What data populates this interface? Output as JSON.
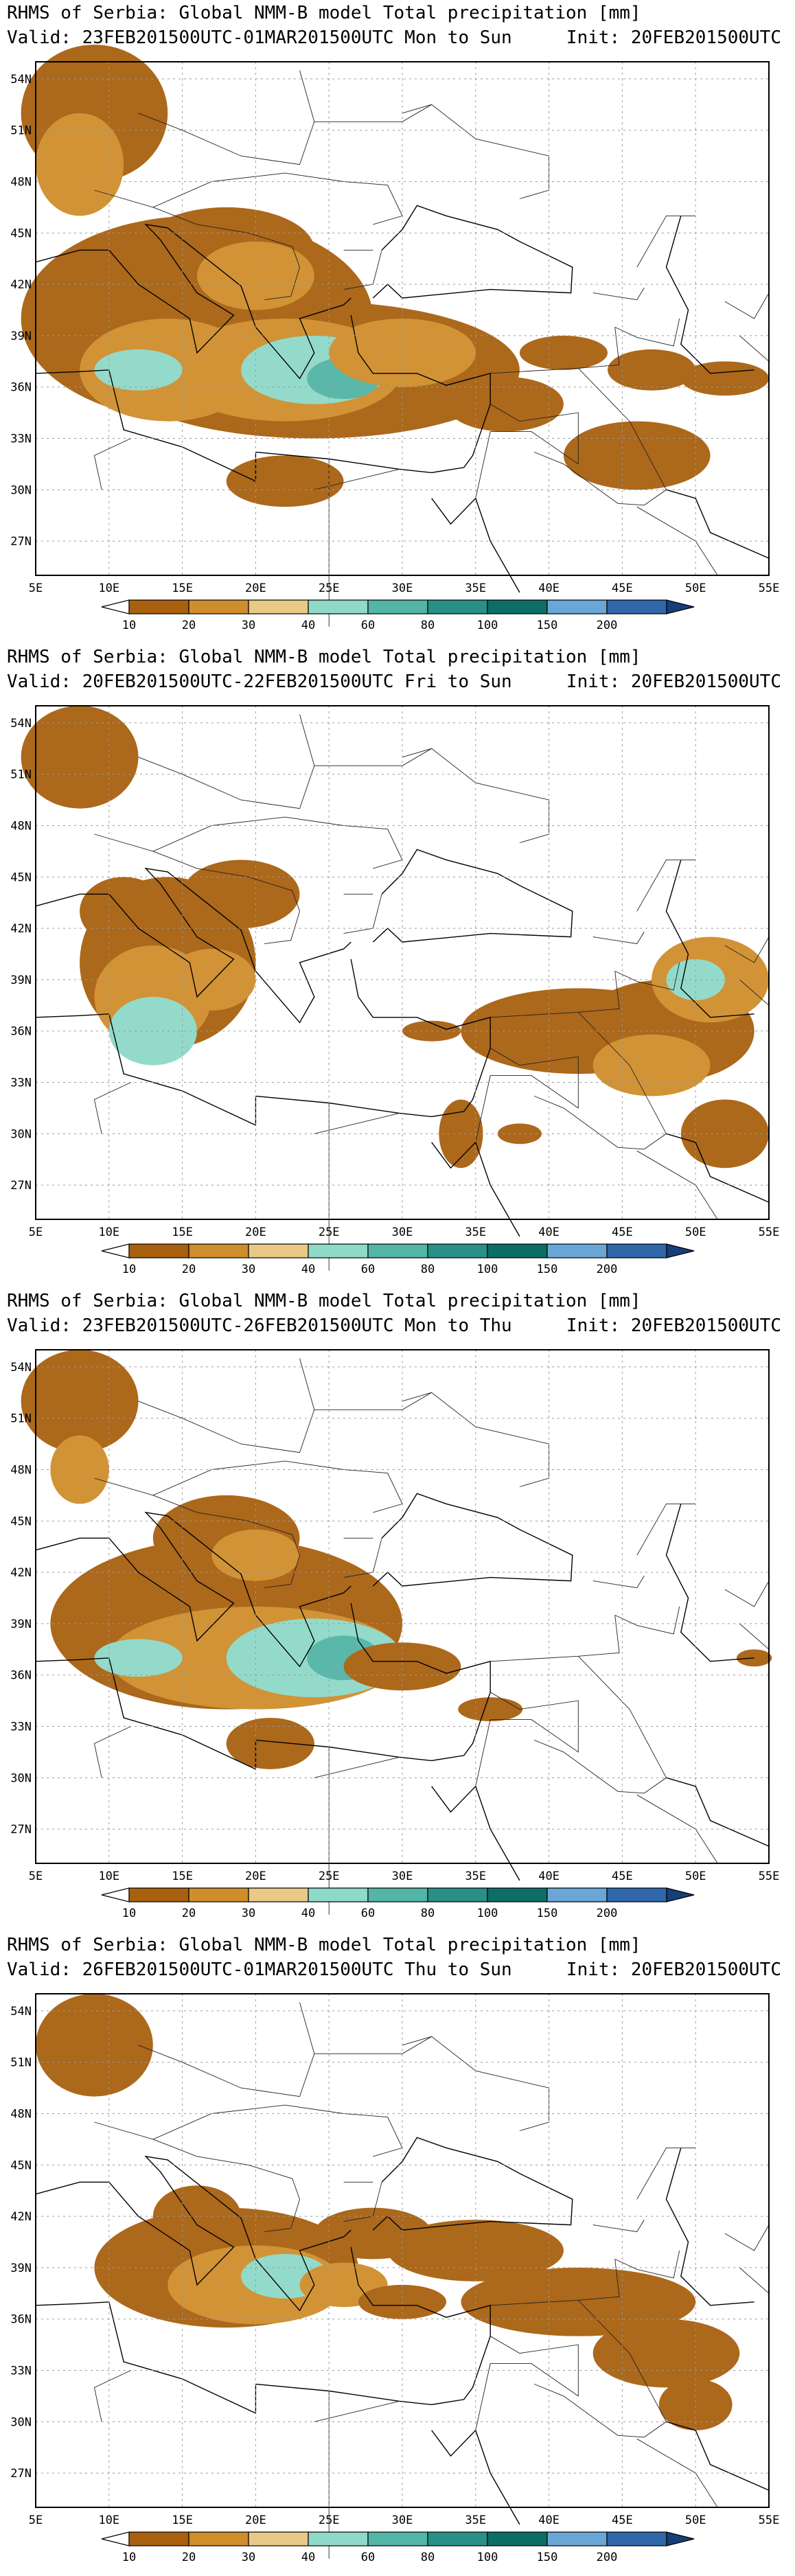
{
  "colors": {
    "c10": "#a8600f",
    "c20": "#cf8e2c",
    "c30": "#e9c987",
    "c40": "#8fd9c8",
    "c60": "#52b5a6",
    "c80": "#2a8f87",
    "c100": "#0c6e64",
    "c150": "#6aa6d6",
    "c200": "#2f67a8",
    "c200p": "#163f7a"
  },
  "axes": {
    "lat_labels": [
      "54N",
      "51N",
      "48N",
      "45N",
      "42N",
      "39N",
      "36N",
      "33N",
      "30N",
      "27N"
    ],
    "lon_labels": [
      "5E",
      "10E",
      "15E",
      "20E",
      "25E",
      "30E",
      "35E",
      "40E",
      "45E",
      "50E",
      "55E"
    ]
  },
  "colorbar": {
    "labels": [
      "10",
      "20",
      "30",
      "40",
      "60",
      "80",
      "100",
      "150",
      "200"
    ]
  },
  "panels": [
    {
      "title": "RHMS of Serbia: Global NMM-B model Total precipitation [mm]",
      "valid": "Valid: 23FEB201500UTC-01MAR201500UTC Mon to Sun",
      "init": "Init: 20FEB201500UTC"
    },
    {
      "title": "RHMS of Serbia: Global NMM-B model Total precipitation [mm]",
      "valid": "Valid: 20FEB201500UTC-22FEB201500UTC Fri to Sun",
      "init": "Init: 20FEB201500UTC"
    },
    {
      "title": "RHMS of Serbia: Global NMM-B model Total precipitation [mm]",
      "valid": "Valid: 23FEB201500UTC-26FEB201500UTC Mon to Thu",
      "init": "Init: 20FEB201500UTC"
    },
    {
      "title": "RHMS of Serbia: Global NMM-B model Total precipitation [mm]",
      "valid": "Valid: 26FEB201500UTC-01MAR201500UTC Thu to Sun",
      "init": "Init: 20FEB201500UTC"
    }
  ]
}
